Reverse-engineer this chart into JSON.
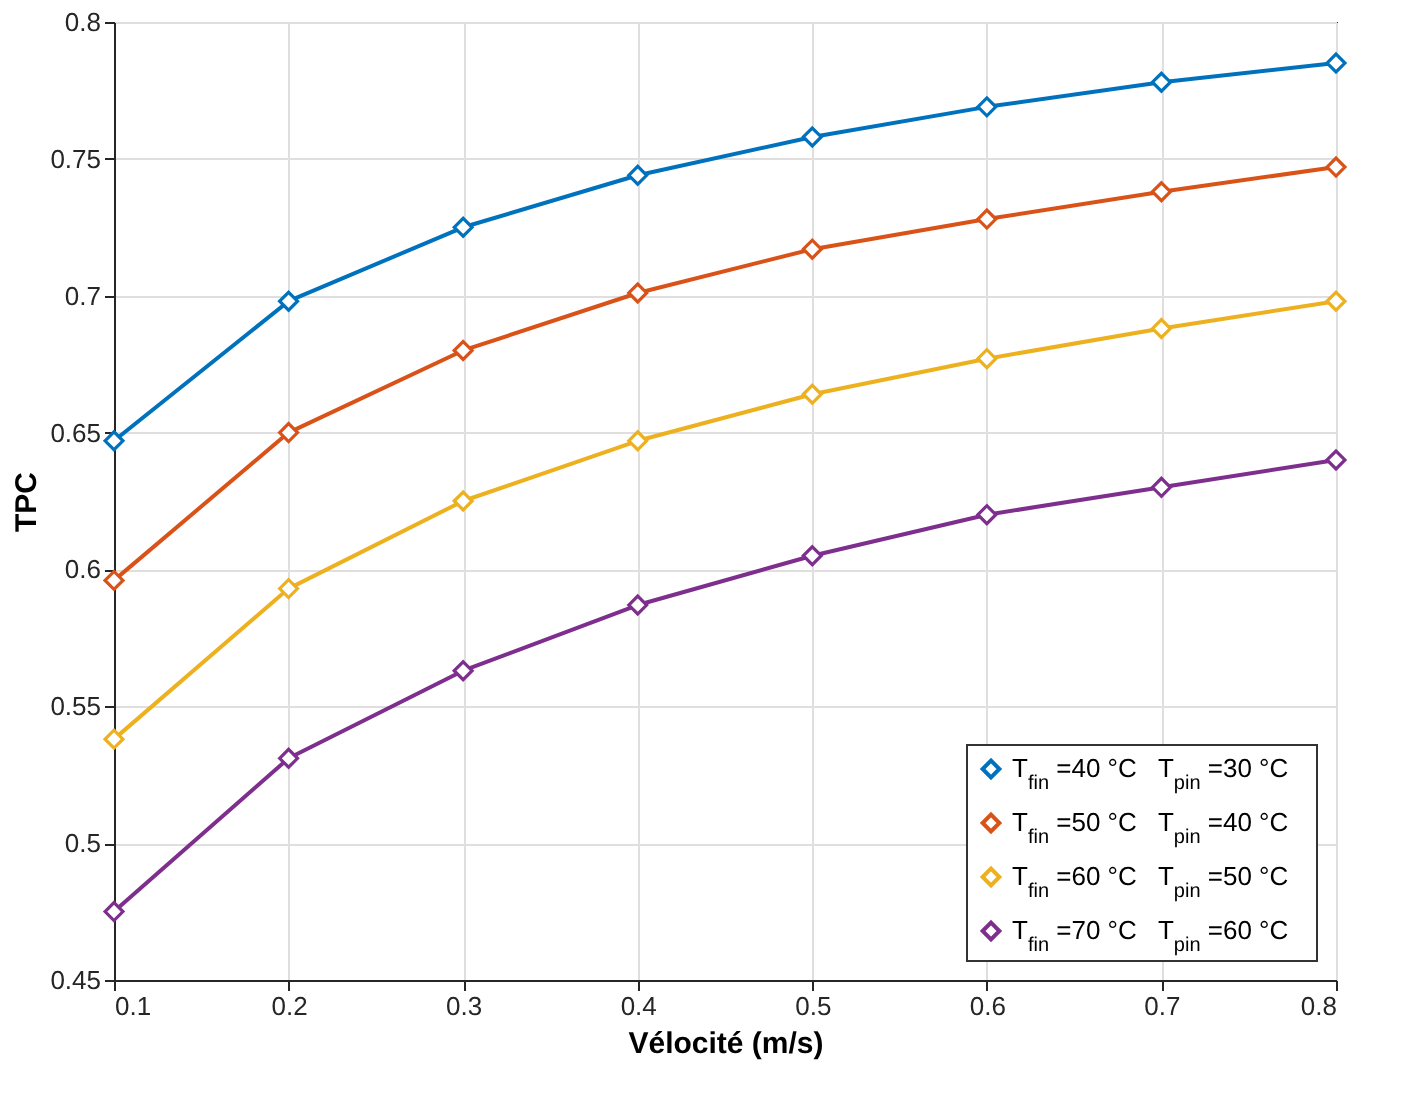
{
  "chart_data": {
    "type": "line",
    "xlabel": "Vélocité (m/s)",
    "ylabel": "TPC",
    "x": [
      0.1,
      0.2,
      0.3,
      0.4,
      0.5,
      0.6,
      0.7,
      0.8
    ],
    "series": [
      {
        "name": "T$_{fin}$ =40 °C   T$_{pin}$ =30 °C",
        "color": "#0072bd",
        "values": [
          0.647,
          0.698,
          0.725,
          0.744,
          0.758,
          0.769,
          0.778,
          0.785
        ]
      },
      {
        "name": "T$_{fin}$ =50 °C   T$_{pin}$ =40 °C",
        "color": "#d95319",
        "values": [
          0.596,
          0.65,
          0.68,
          0.701,
          0.717,
          0.728,
          0.738,
          0.747
        ]
      },
      {
        "name": "T$_{fin}$ =60 °C   T$_{pin}$ =50 °C",
        "color": "#edb120",
        "values": [
          0.538,
          0.593,
          0.625,
          0.647,
          0.664,
          0.677,
          0.688,
          0.698
        ]
      },
      {
        "name": "T$_{fin}$ =70 °C   T$_{pin}$ =60 °C",
        "color": "#7e2f8e",
        "values": [
          0.475,
          0.531,
          0.563,
          0.587,
          0.605,
          0.62,
          0.63,
          0.64
        ]
      }
    ],
    "xlim": [
      0.1,
      0.8
    ],
    "xticks": [
      0.1,
      0.2,
      0.3,
      0.4,
      0.5,
      0.6,
      0.7,
      0.8
    ],
    "ylim": [
      0.45,
      0.8
    ],
    "yticks": [
      0.45,
      0.5,
      0.55,
      0.6,
      0.65,
      0.7,
      0.75,
      0.8
    ],
    "grid": true,
    "legend": "bottom right",
    "marker": "diamond",
    "line_style": "solid"
  }
}
